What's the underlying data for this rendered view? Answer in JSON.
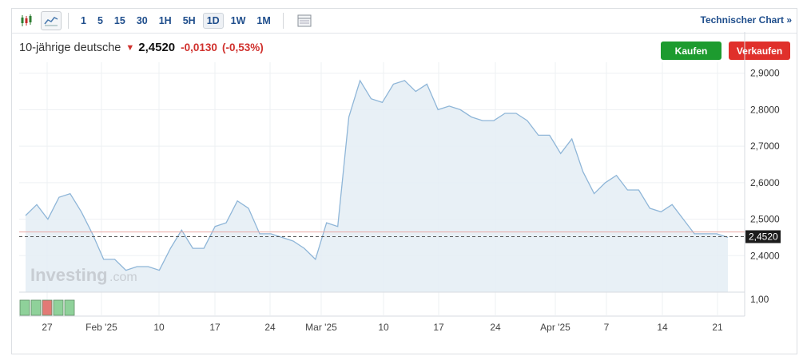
{
  "toolbar": {
    "chart_type_icons": [
      "candlestick-icon",
      "area-chart-icon"
    ],
    "timeframes": [
      "1",
      "5",
      "15",
      "30",
      "1H",
      "5H",
      "1D",
      "1W",
      "1M"
    ],
    "active_timeframe": "1D",
    "table_icon": "data-table-icon",
    "technical_chart_label": "Technischer Chart »"
  },
  "header": {
    "instrument": "10-jährige deutsche",
    "direction_icon": "down-arrow-icon",
    "price": "2,4520",
    "change": "-0,0130",
    "change_pct": "(-0,53%)"
  },
  "buttons": {
    "buy": "Kaufen",
    "sell": "Verkaufen"
  },
  "watermark": {
    "brand": "Investing",
    "suffix": ".com"
  },
  "colors": {
    "line": "#8fb6d8",
    "area": "#e4edf5",
    "negative": "#d0312d",
    "buy": "#1d9b2f",
    "sell": "#e0302b",
    "link": "#1f4e8c"
  },
  "chart_data": {
    "type": "area",
    "x_ticks": [
      "27",
      "Feb '25",
      "10",
      "17",
      "24",
      "Mar '25",
      "10",
      "17",
      "24",
      "Apr '25",
      "7",
      "14",
      "21"
    ],
    "y_ticks": [
      "2,9000",
      "2,8000",
      "2,7000",
      "2,6000",
      "2,5000",
      "2,4000"
    ],
    "ylim": [
      2.3,
      2.93
    ],
    "values": [
      2.51,
      2.54,
      2.5,
      2.56,
      2.57,
      2.52,
      2.46,
      2.39,
      2.39,
      2.36,
      2.37,
      2.37,
      2.36,
      2.42,
      2.47,
      2.42,
      2.42,
      2.48,
      2.49,
      2.55,
      2.53,
      2.46,
      2.46,
      2.45,
      2.44,
      2.42,
      2.39,
      2.49,
      2.48,
      2.78,
      2.88,
      2.83,
      2.82,
      2.87,
      2.88,
      2.85,
      2.87,
      2.8,
      2.81,
      2.8,
      2.78,
      2.77,
      2.77,
      2.79,
      2.79,
      2.77,
      2.73,
      2.73,
      2.68,
      2.72,
      2.63,
      2.57,
      2.6,
      2.62,
      2.58,
      2.58,
      2.53,
      2.52,
      2.54,
      2.5,
      2.46,
      2.46,
      2.46,
      2.45
    ],
    "last_price_label": "2,4520",
    "last_price": 2.452,
    "prev_close": 2.465,
    "grid": true,
    "volume_panel": {
      "axis_label": "1,00",
      "bars": [
        {
          "dir": "up"
        },
        {
          "dir": "up"
        },
        {
          "dir": "down"
        },
        {
          "dir": "up"
        },
        {
          "dir": "up"
        }
      ]
    }
  }
}
